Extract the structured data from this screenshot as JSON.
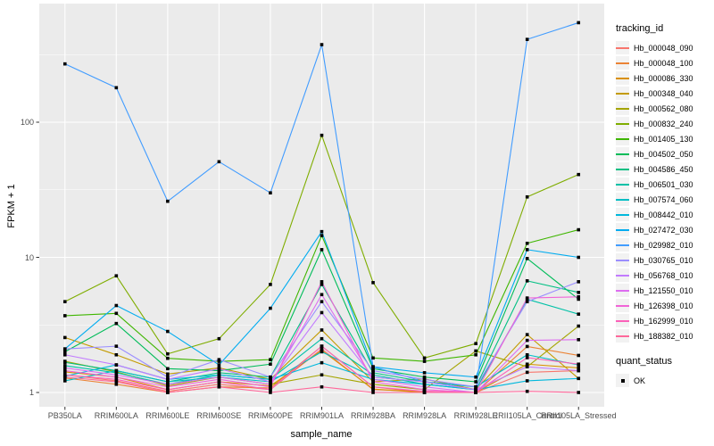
{
  "chart_data": {
    "type": "line",
    "xlabel": "sample_name",
    "ylabel": "FPKM + 1",
    "y_scale": "log10",
    "y_ticks": [
      "1",
      "10",
      "100"
    ],
    "ylim": [
      0.93,
      740
    ],
    "grid": true,
    "categories": [
      "PB350LA",
      "RRIM600LA",
      "RRIM600LE",
      "RRIM600SE",
      "RRIM600PE",
      "RRIM901LA",
      "RRIM928BA",
      "RRIM928LA",
      "RRIM928LE",
      "RRII105LA_Control",
      "RRII105LA_Stressed"
    ],
    "series": [
      {
        "name": "Hb_000048_090",
        "color": "#F8766D",
        "values": [
          1.35,
          1.22,
          1.02,
          1.15,
          1.05,
          2.1,
          1.05,
          1.02,
          1.0,
          1.41,
          1.45
        ]
      },
      {
        "name": "Hb_000048_100",
        "color": "#EB8335",
        "values": [
          1.28,
          1.15,
          1.0,
          1.1,
          1.08,
          2.2,
          1.1,
          1.0,
          1.0,
          2.19,
          1.88
        ]
      },
      {
        "name": "Hb_000086_330",
        "color": "#D99000",
        "values": [
          1.42,
          1.3,
          1.05,
          1.2,
          1.12,
          2.05,
          1.06,
          1.0,
          1.0,
          1.62,
          1.52
        ]
      },
      {
        "name": "Hb_000348_040",
        "color": "#C39B00",
        "values": [
          2.55,
          1.9,
          1.37,
          1.52,
          1.25,
          2.9,
          1.2,
          1.26,
          1.05,
          2.68,
          1.27
        ]
      },
      {
        "name": "Hb_000562_080",
        "color": "#A5A500",
        "values": [
          1.7,
          1.42,
          1.12,
          1.3,
          1.15,
          1.35,
          1.15,
          1.05,
          2.03,
          1.55,
          3.1
        ]
      },
      {
        "name": "Hb_000832_240",
        "color": "#7FAD00",
        "values": [
          4.7,
          7.3,
          1.93,
          2.5,
          6.3,
          80,
          6.5,
          1.8,
          2.3,
          28,
          41
        ]
      },
      {
        "name": "Hb_001405_130",
        "color": "#3FB600",
        "values": [
          3.7,
          3.85,
          1.79,
          1.7,
          1.75,
          14.5,
          1.8,
          1.7,
          1.9,
          12.7,
          16
        ]
      },
      {
        "name": "Hb_004502_050",
        "color": "#00BC59",
        "values": [
          2.0,
          3.24,
          1.5,
          1.45,
          1.62,
          11.4,
          1.5,
          1.3,
          1.2,
          9.8,
          4.9
        ]
      },
      {
        "name": "Hb_004586_450",
        "color": "#00C083",
        "values": [
          1.67,
          1.45,
          1.2,
          1.4,
          1.3,
          6.3,
          1.4,
          1.2,
          1.1,
          6.7,
          5.5
        ]
      },
      {
        "name": "Hb_006501_030",
        "color": "#00C1A7",
        "values": [
          1.58,
          1.4,
          1.15,
          1.35,
          1.25,
          2.5,
          1.35,
          1.15,
          1.05,
          4.9,
          3.8
        ]
      },
      {
        "name": "Hb_007574_060",
        "color": "#00BEC4",
        "values": [
          1.22,
          1.45,
          1.2,
          1.3,
          1.2,
          2.0,
          1.3,
          1.2,
          1.1,
          1.9,
          1.6
        ]
      },
      {
        "name": "Hb_008442_010",
        "color": "#00B8DC",
        "values": [
          1.32,
          1.6,
          1.25,
          1.35,
          1.25,
          1.66,
          1.25,
          1.15,
          1.05,
          1.22,
          1.27
        ]
      },
      {
        "name": "Hb_027472_030",
        "color": "#00ACF0",
        "values": [
          2.1,
          4.4,
          2.83,
          1.6,
          4.2,
          15.5,
          1.55,
          1.4,
          1.3,
          11.4,
          10
        ]
      },
      {
        "name": "Hb_029982_010",
        "color": "#419CFF",
        "values": [
          270,
          180,
          26,
          51,
          30,
          375,
          1.55,
          1.2,
          1.05,
          410,
          545
        ]
      },
      {
        "name": "Hb_030765_010",
        "color": "#9B8EFF",
        "values": [
          2.1,
          2.2,
          1.3,
          1.75,
          1.3,
          4.7,
          1.45,
          1.25,
          1.1,
          4.7,
          6.6
        ]
      },
      {
        "name": "Hb_056768_010",
        "color": "#C27BFF",
        "values": [
          1.9,
          1.6,
          1.25,
          1.5,
          1.2,
          3.9,
          1.3,
          1.2,
          1.05,
          1.55,
          1.45
        ]
      },
      {
        "name": "Hb_121550_010",
        "color": "#DD6DF0",
        "values": [
          1.52,
          1.35,
          1.15,
          1.3,
          1.15,
          5.3,
          1.25,
          1.1,
          1.0,
          2.43,
          2.46
        ]
      },
      {
        "name": "Hb_126398_010",
        "color": "#F164D7",
        "values": [
          1.45,
          1.3,
          1.1,
          1.25,
          1.1,
          6.6,
          1.2,
          1.05,
          1.0,
          5.0,
          5.1
        ]
      },
      {
        "name": "Hb_162999_010",
        "color": "#FB61B9",
        "values": [
          1.35,
          1.25,
          1.05,
          1.2,
          1.05,
          2.2,
          1.1,
          1.02,
          1.0,
          1.81,
          1.62
        ]
      },
      {
        "name": "Hb_188382_010",
        "color": "#FF689B",
        "values": [
          1.3,
          1.2,
          1.0,
          1.1,
          1.0,
          1.1,
          1.0,
          1.0,
          1.0,
          1.02,
          1.0
        ]
      }
    ],
    "points": {
      "shape": "filled-square",
      "color": "#000000"
    },
    "legend": {
      "position": "right",
      "color_legend_title": "tracking_id",
      "shape_legend_title": "quant_status",
      "shape_items": [
        "OK"
      ]
    },
    "style": {
      "panel_bg": "#EBEBEB",
      "grid_color": "#FFFFFF",
      "tick_label_color": "#4D4D4D",
      "axis_tick_color": "#333333",
      "legend_key_bg": "#F2F2F2"
    }
  }
}
